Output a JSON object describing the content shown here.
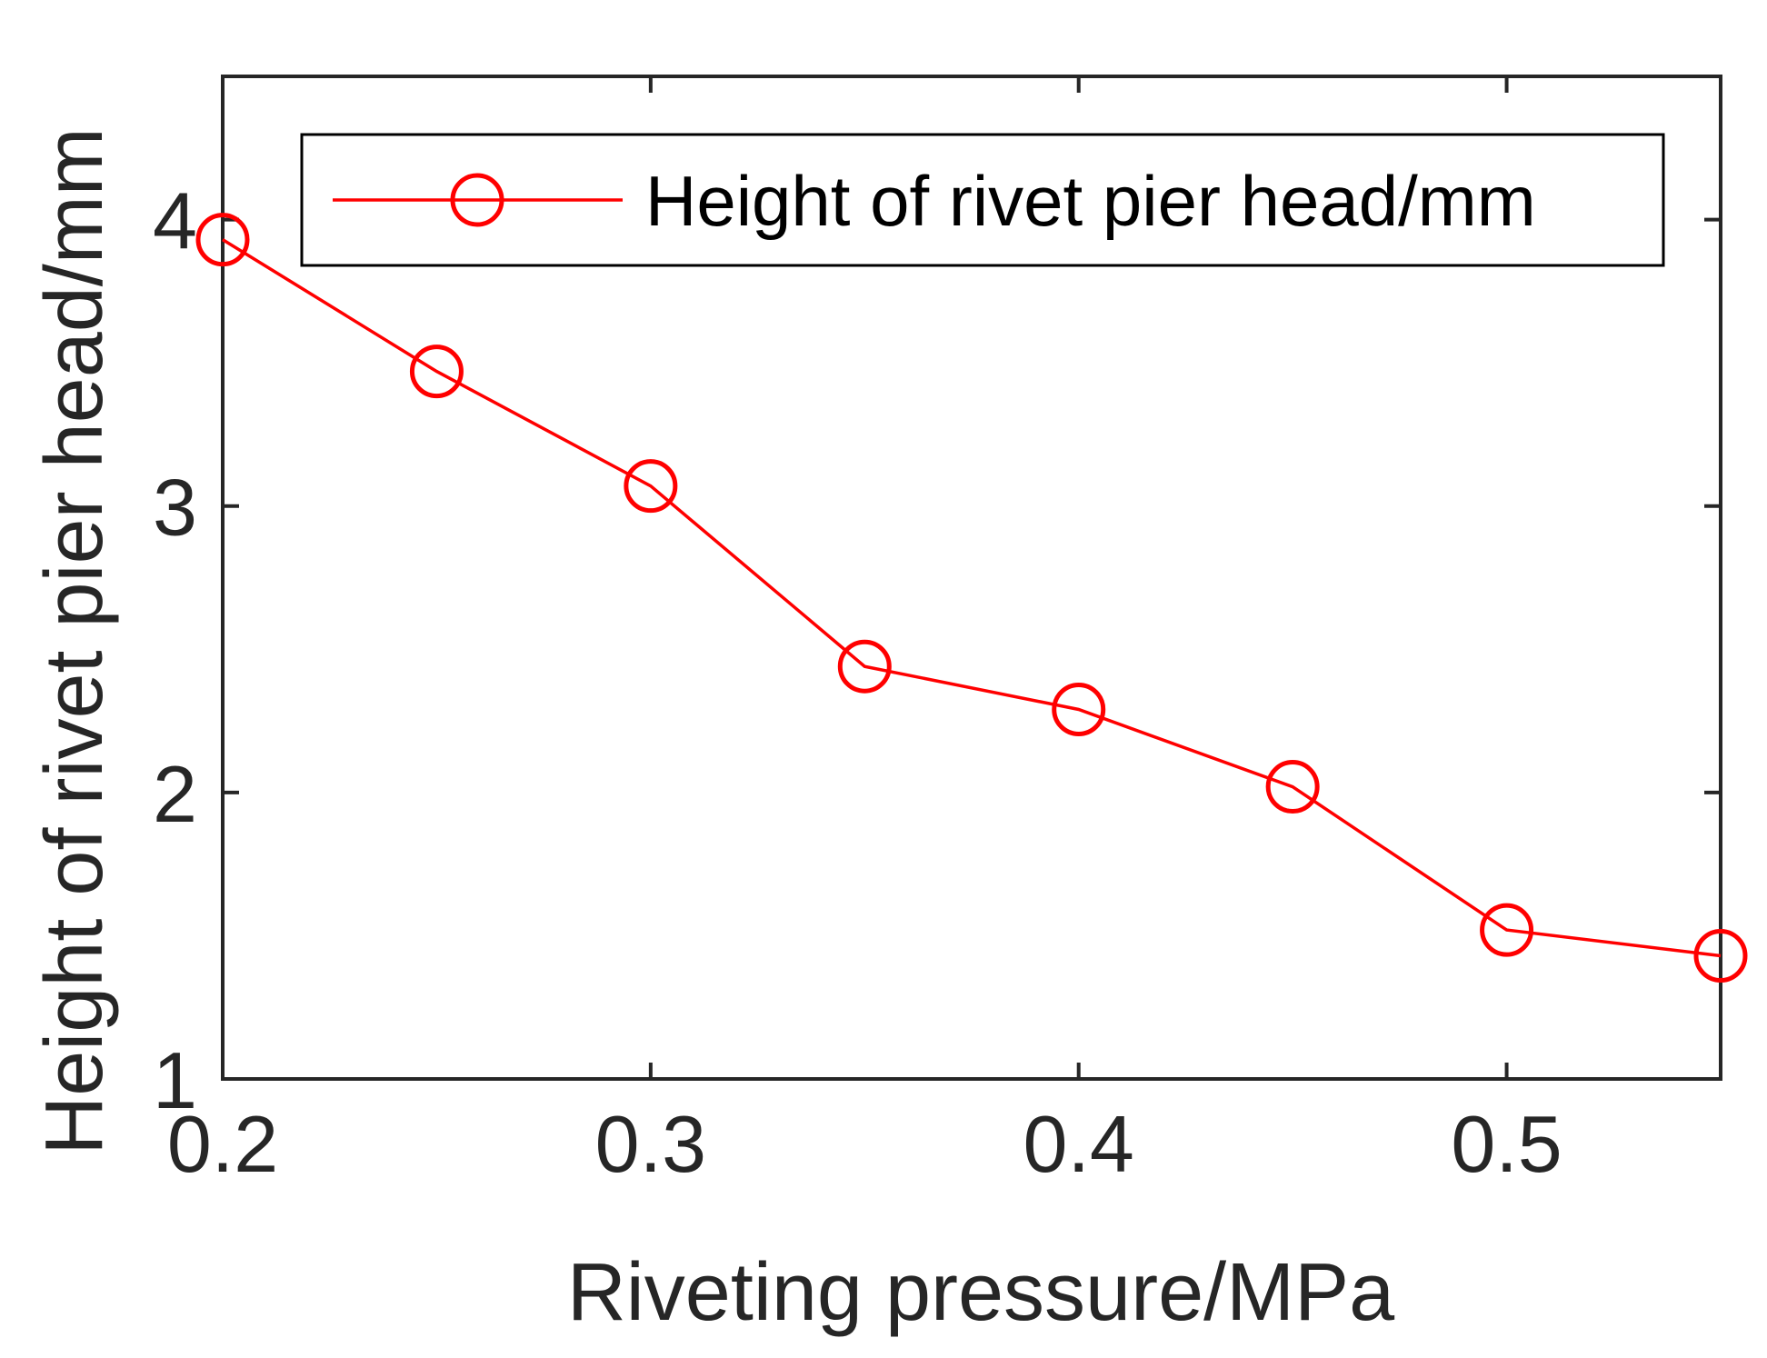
{
  "chart_data": {
    "type": "line",
    "title": "",
    "xlabel": "Riveting pressure/MPa",
    "ylabel": "Height of rivet pier head/mm",
    "xlim": [
      0.2,
      0.55
    ],
    "ylim": [
      1,
      4.5
    ],
    "xticks": [
      0.2,
      0.3,
      0.4,
      0.5
    ],
    "xtick_labels": [
      "0.2",
      "0.3",
      "0.4",
      "0.5"
    ],
    "yticks": [
      1,
      2,
      3,
      4
    ],
    "ytick_labels": [
      "1",
      "2",
      "3",
      "4"
    ],
    "grid": false,
    "legend_position": "top-right",
    "series": [
      {
        "name": "Height of rivet pier head/mm",
        "color": "#ff0000",
        "marker": "circle",
        "x": [
          0.2,
          0.25,
          0.3,
          0.35,
          0.4,
          0.45,
          0.5,
          0.55
        ],
        "y": [
          3.93,
          3.47,
          3.07,
          2.44,
          2.29,
          2.02,
          1.52,
          1.43
        ]
      }
    ]
  }
}
